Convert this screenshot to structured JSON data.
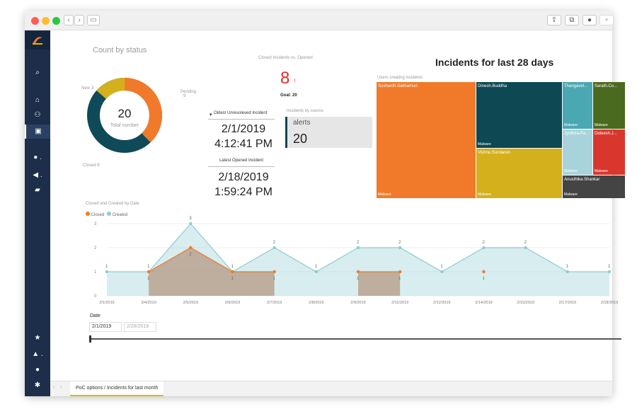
{
  "window": {
    "colors": {
      "close": "#fe5f57",
      "min": "#febc2e",
      "max": "#28c840"
    }
  },
  "sidebar": {
    "items": [
      "logo-icon",
      "search-icon",
      "home-icon",
      "people-icon",
      "report-icon",
      "alert-icon",
      "megaphone-icon",
      "chat-icon",
      "star-icon",
      "bell-icon",
      "user-icon",
      "gear-icon"
    ]
  },
  "count_by_status": {
    "title": "Count by status",
    "center_value": "20",
    "center_label": "Total number",
    "labels": {
      "new": "New 3",
      "pending": "Pending",
      "pending_count": "9",
      "closed": "Closed 8"
    },
    "chart_data": {
      "type": "pie",
      "categories": [
        "New",
        "Pending",
        "Closed"
      ],
      "values": [
        3,
        9,
        8
      ],
      "colors": [
        "#d4b01c",
        "#f07a2a",
        "#0f4a58"
      ]
    }
  },
  "closed_vs_opened": {
    "title": "Closed Incidents vs. Opened",
    "value": "8",
    "indicator": "!",
    "goal": "Goal: 20"
  },
  "oldest": {
    "header": "Oldest Unresoleved Incident",
    "date": "2/1/2019",
    "time": "4:12:41 PM"
  },
  "latest": {
    "header": "Latest Opened Incident",
    "date": "2/18/2019",
    "time": "1:59:24 PM"
  },
  "by_source": {
    "title": "Incidents by source",
    "label": "alerts",
    "value": "20"
  },
  "incidents28": {
    "title": "Incidents for last 28 days",
    "subtitle": "Users creating incidents",
    "tiles": [
      {
        "name": "Sushanth.Sakhamuri",
        "type": "Malware",
        "color": "#f07a2a"
      },
      {
        "name": "Dinesh.Buddha",
        "type": "Malware",
        "color": "#0d4853"
      },
      {
        "name": "Vishnu.Sundaran",
        "type": "Malware",
        "color": "#d4b01c"
      },
      {
        "name": "Thangavel...",
        "type": "Malware",
        "color": "#4aa8b3"
      },
      {
        "name": "Sarath.Co...",
        "type": "Malware",
        "color": "#4a6a1f"
      },
      {
        "name": "Jyothira.Pa...",
        "type": "Malware",
        "color": "#a9d3db"
      },
      {
        "name": "Dideesh.J...",
        "type": "Malware",
        "color": "#d9372e"
      },
      {
        "name": "Anusthika.Shankar",
        "type": "Malware",
        "color": "#444444"
      }
    ]
  },
  "line_chart": {
    "title": "Closed and Created by Date",
    "legend": [
      {
        "name": "Closed",
        "color": "#f07a2a"
      },
      {
        "name": "Created",
        "color": "#8fcbd2"
      }
    ],
    "chart_data": {
      "type": "area",
      "x": [
        "2/1/2019",
        "2/4/2019",
        "2/5/2019",
        "2/6/2019",
        "2/7/2019",
        "2/8/2019",
        "2/9/2019",
        "2/11/2019",
        "2/12/2019",
        "2/14/2019",
        "2/15/2019",
        "2/17/2019",
        "2/18/2019"
      ],
      "ylim": [
        0,
        3
      ],
      "yticks": [
        "0",
        "1",
        "2",
        "3"
      ],
      "series": [
        {
          "name": "Created",
          "values": [
            1,
            1,
            3,
            1,
            2,
            1,
            2,
            2,
            1,
            2,
            2,
            1,
            1
          ]
        },
        {
          "name": "Closed",
          "values": [
            null,
            1,
            2,
            1,
            1,
            null,
            1,
            1,
            null,
            1,
            null,
            null,
            null
          ]
        }
      ]
    }
  },
  "date_filter": {
    "label": "Date",
    "start": "2/1/2019",
    "end": "2/28/2019"
  },
  "footer": {
    "tab": "PoC options / Incidents for last month"
  }
}
